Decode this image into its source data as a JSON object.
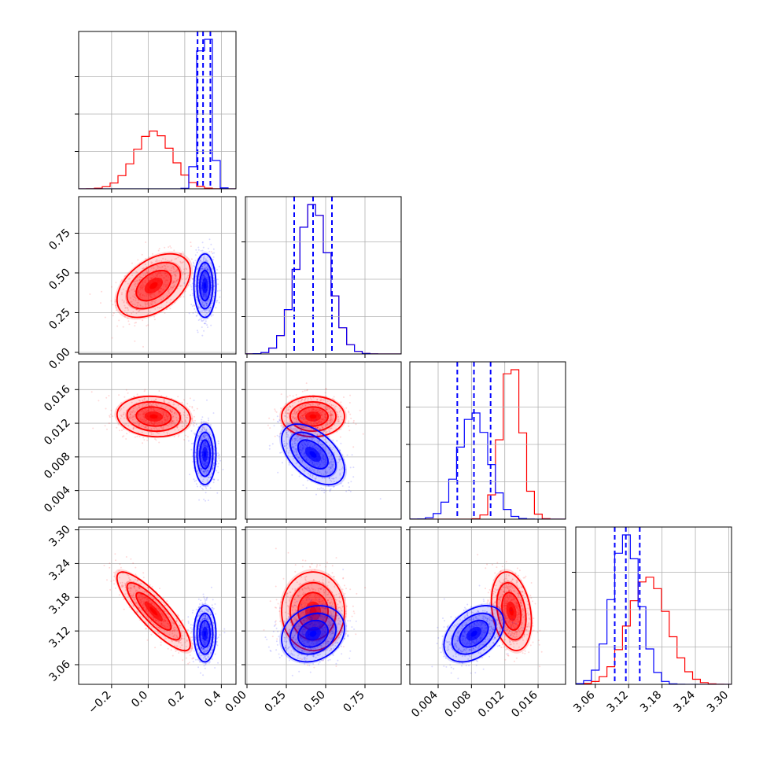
{
  "chart_data": {
    "type": "scatter",
    "subtype": "corner-plot",
    "colors": {
      "series_a": "#ff0000",
      "series_b": "#0000ff"
    },
    "grid": true,
    "params": [
      {
        "range": [
          -0.38,
          0.48
        ],
        "ticks": [
          -0.2,
          0.0,
          0.2,
          0.4
        ],
        "tick_labels": [
          "−0.2",
          "0.0",
          "0.2",
          "0.4"
        ]
      },
      {
        "range": [
          -0.01,
          0.98
        ],
        "ticks": [
          0.0,
          0.25,
          0.5,
          0.75
        ],
        "tick_labels": [
          "0.00",
          "0.25",
          "0.50",
          "0.75"
        ]
      },
      {
        "range": [
          0.0006,
          0.0193
        ],
        "ticks": [
          0.004,
          0.008,
          0.012,
          0.016
        ],
        "tick_labels": [
          "0.004",
          "0.008",
          "0.012",
          "0.016"
        ]
      },
      {
        "range": [
          3.025,
          3.305
        ],
        "ticks": [
          3.06,
          3.12,
          3.18,
          3.24,
          3.3
        ],
        "tick_labels": [
          "3.06",
          "3.12",
          "3.18",
          "3.24",
          "3.30"
        ]
      }
    ],
    "series": [
      {
        "color": "#ff0000",
        "means": [
          0.03,
          0.42,
          0.0128,
          3.155
        ],
        "sds": [
          0.1,
          0.1,
          0.0012,
          0.035
        ],
        "correlations": {
          "0-1": 0.45,
          "0-2": -0.1,
          "0-3": -0.85,
          "1-2": 0.0,
          "1-3": 0.0,
          "2-3": -0.25
        }
      },
      {
        "color": "#0000ff",
        "means": [
          0.31,
          0.42,
          0.0083,
          3.115
        ],
        "sds": [
          0.03,
          0.1,
          0.0018,
          0.025
        ],
        "correlations": {
          "0-1": 0.0,
          "0-2": 0.0,
          "0-3": 0.0,
          "1-2": -0.5,
          "1-3": 0.2,
          "2-3": 0.4
        }
      }
    ],
    "quantile_lines": [
      [
        0.27,
        0.3,
        0.34
      ],
      [
        0.3,
        0.42,
        0.54
      ],
      [
        0.0063,
        0.0083,
        0.0103
      ],
      [
        3.095,
        3.115,
        3.14
      ]
    ]
  }
}
